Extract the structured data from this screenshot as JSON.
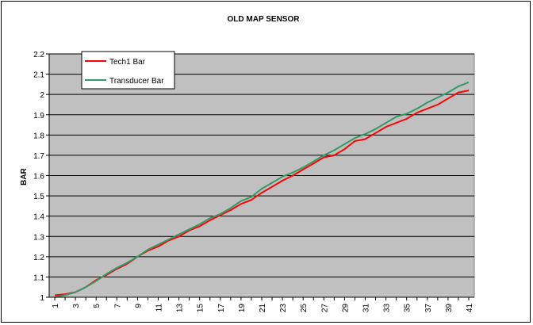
{
  "chart_data": {
    "type": "line",
    "title": "OLD MAP SENSOR",
    "xlabel": "",
    "ylabel": "BAR",
    "x": [
      1,
      2,
      3,
      4,
      5,
      6,
      7,
      8,
      9,
      10,
      11,
      12,
      13,
      14,
      15,
      16,
      17,
      18,
      19,
      20,
      21,
      22,
      23,
      24,
      25,
      26,
      27,
      28,
      29,
      30,
      31,
      32,
      33,
      34,
      35,
      36,
      37,
      38,
      39,
      40,
      41
    ],
    "ylim": [
      1,
      2.2
    ],
    "yticks": [
      "1",
      "1.1",
      "1.2",
      "1.3",
      "1.4",
      "1.5",
      "1.6",
      "1.7",
      "1.8",
      "1.9",
      "2",
      "2.1",
      "2.2"
    ],
    "grid": "horizontal",
    "legend_position": "top-left",
    "plot_background": "#C0C0C0",
    "series": [
      {
        "name": "Tech1 Bar",
        "color": "#FF0000",
        "values": [
          1.01,
          1.015,
          1.025,
          1.05,
          1.085,
          1.11,
          1.14,
          1.165,
          1.2,
          1.23,
          1.25,
          1.28,
          1.3,
          1.33,
          1.35,
          1.38,
          1.405,
          1.43,
          1.46,
          1.48,
          1.515,
          1.545,
          1.575,
          1.6,
          1.63,
          1.66,
          1.69,
          1.7,
          1.73,
          1.77,
          1.78,
          1.81,
          1.84,
          1.86,
          1.88,
          1.91,
          1.93,
          1.95,
          1.98,
          2.01,
          2.02
        ]
      },
      {
        "name": "Transducer Bar",
        "color": "#339966",
        "values": [
          1.0,
          1.01,
          1.025,
          1.05,
          1.08,
          1.115,
          1.145,
          1.17,
          1.2,
          1.235,
          1.26,
          1.285,
          1.31,
          1.335,
          1.36,
          1.39,
          1.41,
          1.44,
          1.475,
          1.495,
          1.535,
          1.565,
          1.595,
          1.615,
          1.64,
          1.67,
          1.7,
          1.725,
          1.755,
          1.785,
          1.805,
          1.83,
          1.86,
          1.89,
          1.905,
          1.93,
          1.96,
          1.985,
          2.01,
          2.04,
          2.06
        ]
      }
    ]
  }
}
